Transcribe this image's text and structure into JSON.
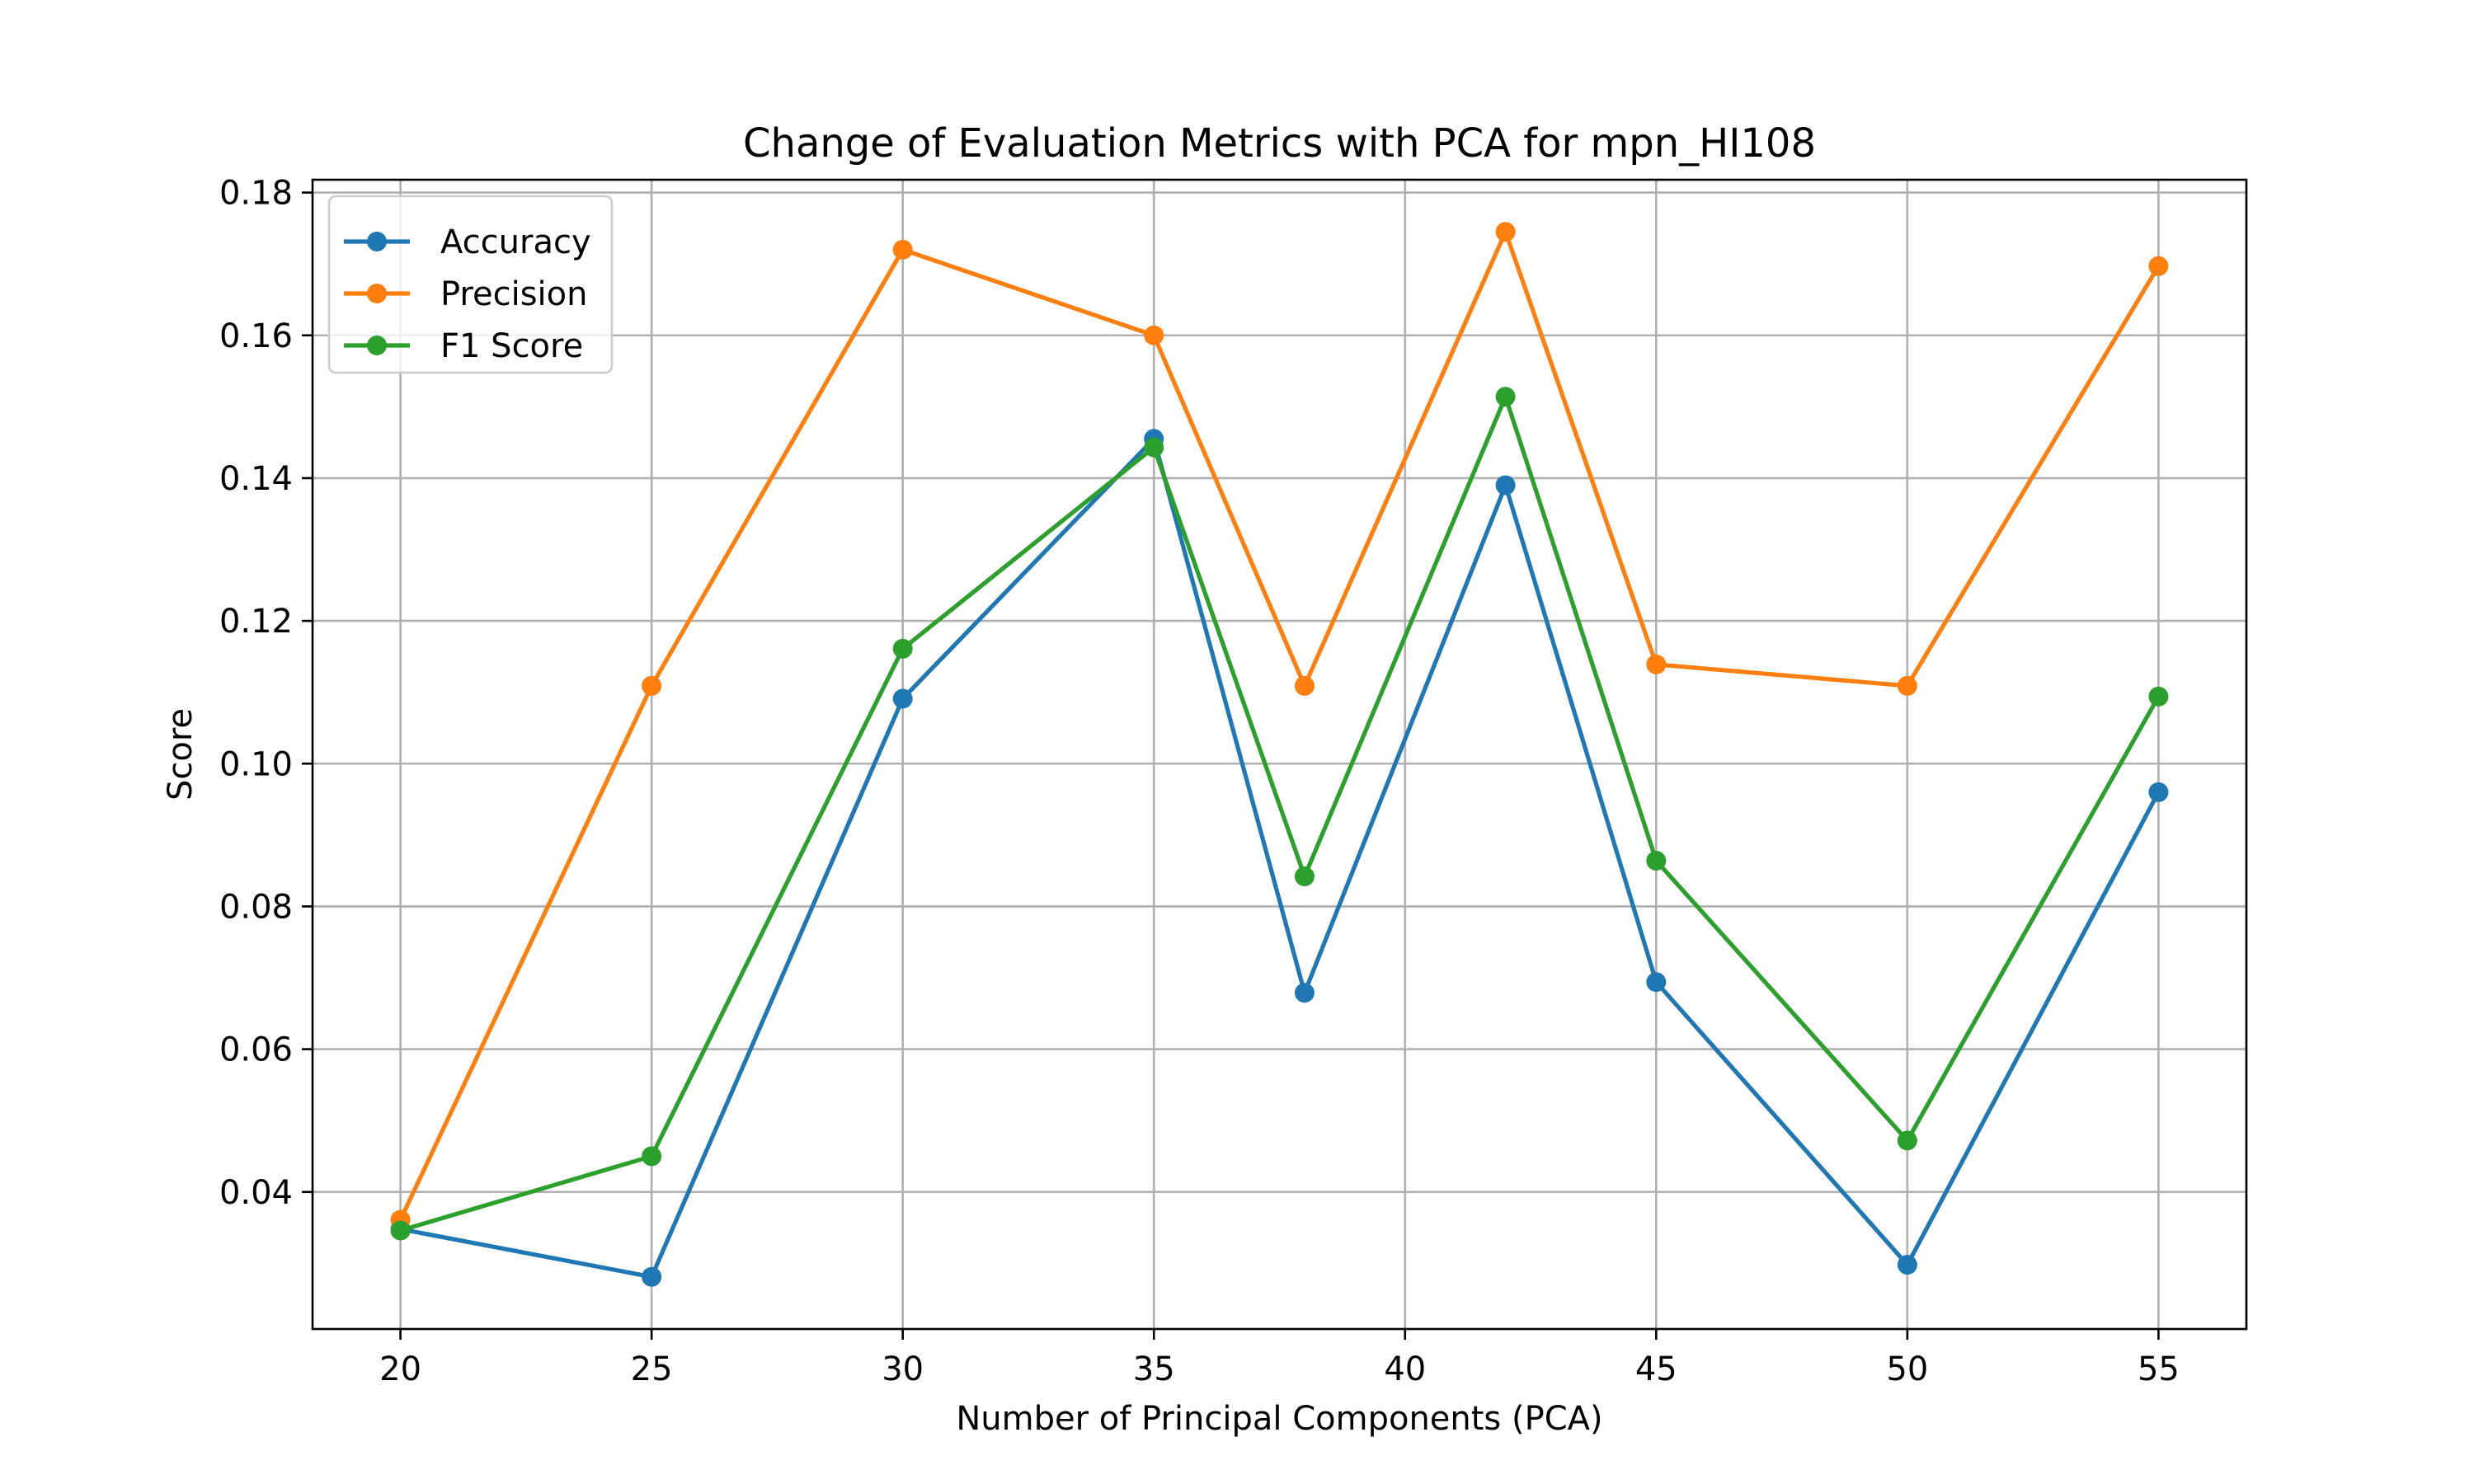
{
  "chart_data": {
    "type": "line",
    "title": "Change of Evaluation Metrics with PCA for mpn_HI108",
    "xlabel": "Number of Principal Components (PCA)",
    "ylabel": "Score",
    "x": [
      20,
      25,
      30,
      35,
      38,
      42,
      45,
      50,
      55
    ],
    "xticks": [
      20,
      25,
      30,
      35,
      40,
      45,
      50,
      55
    ],
    "xtick_labels": [
      "20",
      "25",
      "30",
      "35",
      "40",
      "45",
      "50",
      "55"
    ],
    "yticks": [
      0.04,
      0.06,
      0.08,
      0.1,
      0.12,
      0.14,
      0.16,
      0.18
    ],
    "ytick_labels": [
      "0.04",
      "0.06",
      "0.08",
      "0.10",
      "0.12",
      "0.14",
      "0.16",
      "0.18"
    ],
    "xlim": [
      18.25,
      56.75
    ],
    "ylim": [
      0.0208,
      0.1818
    ],
    "grid": true,
    "legend_position": "top-left",
    "series": [
      {
        "name": "Accuracy",
        "color": "#1f77b4",
        "values": [
          0.0348,
          0.0281,
          0.1091,
          0.1455,
          0.0679,
          0.139,
          0.0694,
          0.0298,
          0.096
        ]
      },
      {
        "name": "Precision",
        "color": "#ff7f0e",
        "values": [
          0.0361,
          0.1109,
          0.172,
          0.16,
          0.1109,
          0.1745,
          0.1139,
          0.1109,
          0.1697
        ]
      },
      {
        "name": "F1 Score",
        "color": "#2ca02c",
        "values": [
          0.0346,
          0.045,
          0.1161,
          0.1443,
          0.0842,
          0.1514,
          0.0864,
          0.0472,
          0.1094
        ]
      }
    ]
  }
}
